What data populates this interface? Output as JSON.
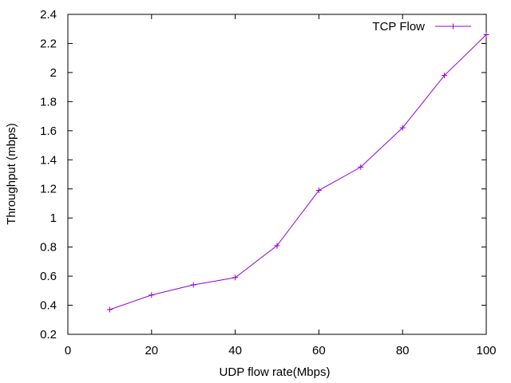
{
  "chart_data": {
    "type": "line",
    "xlabel": "UDP flow rate(Mbps)",
    "ylabel": "Throughput (mbps)",
    "xlim": [
      0,
      100
    ],
    "ylim": [
      0.2,
      2.4
    ],
    "xticks": [
      "0",
      "20",
      "40",
      "60",
      "80",
      "100"
    ],
    "yticks": [
      "0.2",
      "0.4",
      "0.6",
      "0.8",
      "1",
      "1.2",
      "1.4",
      "1.6",
      "1.8",
      "2",
      "2.2",
      "2.4"
    ],
    "grid": false,
    "legend_position": "top-right",
    "series": [
      {
        "name": "TCP Flow",
        "color": "#9400d3",
        "marker": "plus",
        "x": [
          10,
          20,
          30,
          40,
          50,
          60,
          70,
          80,
          90,
          100
        ],
        "y": [
          0.37,
          0.47,
          0.54,
          0.59,
          0.81,
          1.19,
          1.35,
          1.62,
          1.98,
          2.26
        ]
      }
    ]
  }
}
